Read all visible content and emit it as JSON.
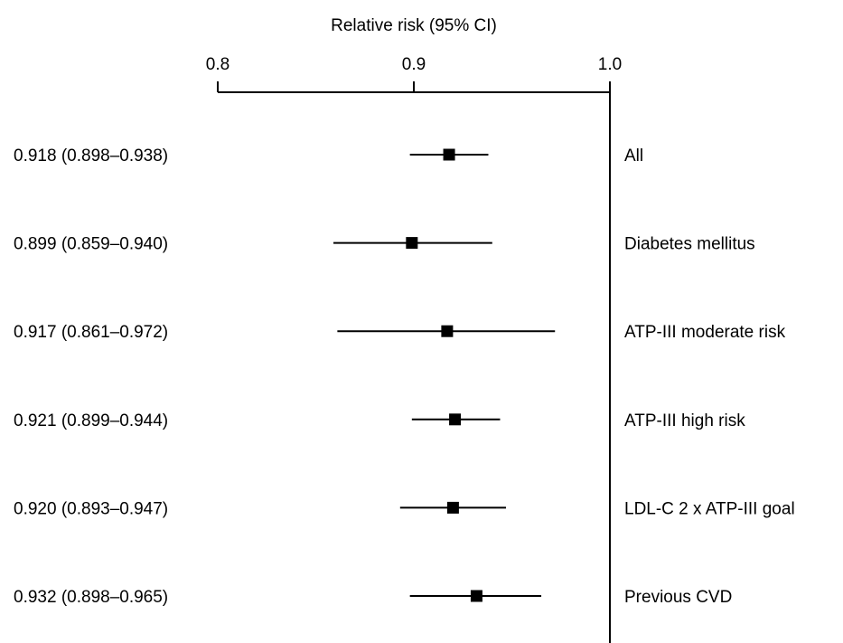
{
  "chart_data": {
    "type": "forest",
    "title": "",
    "xlabel": "Relative risk (95% CI)",
    "ylabel": "",
    "xlim": [
      0.8,
      1.0
    ],
    "x_ticks": [
      "0.8",
      "0.9",
      "1.0"
    ],
    "x_tick_values": [
      0.8,
      0.9,
      1.0
    ],
    "reference_line": 1.0,
    "grid": false,
    "legend": "none",
    "rows": [
      {
        "label": "All",
        "estimate": 0.918,
        "ci_low": 0.898,
        "ci_high": 0.938,
        "text": "0.918 (0.898–0.938)"
      },
      {
        "label": "Diabetes mellitus",
        "estimate": 0.899,
        "ci_low": 0.859,
        "ci_high": 0.94,
        "text": "0.899 (0.859–0.940)"
      },
      {
        "label": "ATP-III moderate risk",
        "estimate": 0.917,
        "ci_low": 0.861,
        "ci_high": 0.972,
        "text": "0.917 (0.861–0.972)"
      },
      {
        "label": "ATP-III high risk",
        "estimate": 0.921,
        "ci_low": 0.899,
        "ci_high": 0.944,
        "text": "0.921 (0.899–0.944)"
      },
      {
        "label": "LDL-C 2 x ATP-III goal",
        "estimate": 0.92,
        "ci_low": 0.893,
        "ci_high": 0.947,
        "text": "0.920 (0.893–0.947)"
      },
      {
        "label": "Previous CVD",
        "estimate": 0.932,
        "ci_low": 0.898,
        "ci_high": 0.965,
        "text": "0.932 (0.898–0.965)"
      }
    ],
    "colors": {
      "marks": "#000000",
      "background": "#ffffff"
    }
  }
}
